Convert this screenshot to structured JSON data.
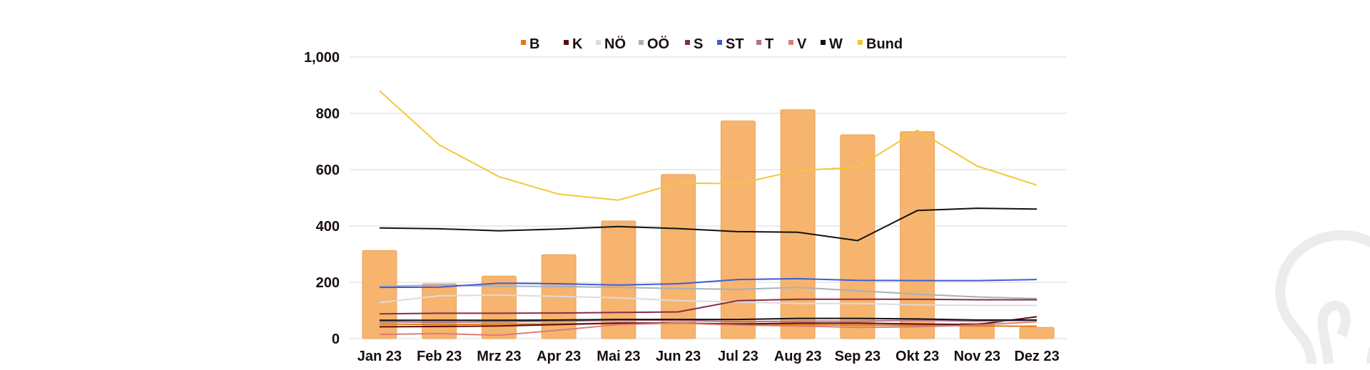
{
  "chart_data": {
    "type": "bar",
    "categories": [
      "Jan 23",
      "Feb 23",
      "Mrz 23",
      "Apr 23",
      "Mai 23",
      "Jun 23",
      "Jul 23",
      "Aug 23",
      "Sep 23",
      "Okt 23",
      "Nov 23",
      "Dez 23"
    ],
    "ylim": [
      0,
      1000
    ],
    "yticks": [
      "0",
      "200",
      "400",
      "600",
      "800",
      "1,000"
    ],
    "yticks_values": [
      0,
      200,
      400,
      600,
      800,
      1000
    ],
    "grid": true,
    "legend_position": "top",
    "bars": {
      "name": "",
      "color": "#f6b46e",
      "values": [
        313,
        195,
        222,
        298,
        418,
        583,
        773,
        813,
        724,
        735,
        55,
        40
      ]
    },
    "series": [
      {
        "name": "B",
        "color": "#e07b10",
        "values": [
          52,
          50,
          52,
          52,
          55,
          55,
          52,
          50,
          48,
          47,
          45,
          44
        ]
      },
      {
        "name": "K",
        "color": "#5a1010",
        "values": [
          42,
          43,
          45,
          50,
          55,
          55,
          52,
          55,
          55,
          52,
          50,
          78
        ]
      },
      {
        "name": "NÖ",
        "color": "#dcdcdc",
        "values": [
          128,
          152,
          155,
          150,
          145,
          135,
          130,
          125,
          125,
          120,
          118,
          118
        ]
      },
      {
        "name": "OÖ",
        "color": "#aab0bb",
        "values": [
          186,
          190,
          186,
          185,
          182,
          178,
          175,
          182,
          170,
          158,
          148,
          142
        ]
      },
      {
        "name": "S",
        "color": "#8b2a4a",
        "values": [
          88,
          90,
          90,
          91,
          93,
          95,
          135,
          140,
          140,
          140,
          138,
          138
        ]
      },
      {
        "name": "ST",
        "color": "#3f5bd8",
        "values": [
          182,
          183,
          197,
          195,
          190,
          195,
          210,
          213,
          207,
          206,
          206,
          210
        ]
      },
      {
        "name": "T",
        "color": "#b07090",
        "values": [
          60,
          58,
          60,
          62,
          65,
          65,
          60,
          62,
          62,
          65,
          62,
          65
        ]
      },
      {
        "name": "V",
        "color": "#e07a7a",
        "values": [
          15,
          18,
          12,
          30,
          50,
          55,
          48,
          45,
          40,
          42,
          48,
          60
        ]
      },
      {
        "name": "W",
        "color": "#111111",
        "values": [
          393,
          390,
          383,
          389,
          398,
          391,
          380,
          378,
          348,
          455,
          463,
          460
        ]
      },
      {
        "name": "W",
        "color": "#111111",
        "values": [
          65,
          65,
          65,
          66,
          68,
          68,
          68,
          72,
          72,
          70,
          66,
          66
        ]
      },
      {
        "name": "Bund",
        "color": "#f2c83a",
        "values": [
          880,
          688,
          575,
          513,
          492,
          553,
          550,
          597,
          608,
          740,
          613,
          545
        ]
      }
    ],
    "legend": [
      {
        "name": "B",
        "color": "#e07b10"
      },
      {
        "name": "K",
        "color": "#5a1010"
      },
      {
        "name": "NÖ",
        "color": "#dcdcdc"
      },
      {
        "name": "OÖ",
        "color": "#aab0bb"
      },
      {
        "name": "S",
        "color": "#8b2a4a"
      },
      {
        "name": "ST",
        "color": "#3f5bd8"
      },
      {
        "name": "T",
        "color": "#b07090"
      },
      {
        "name": "V",
        "color": "#e07a7a"
      },
      {
        "name": "W",
        "color": "#111111"
      },
      {
        "name": "Bund",
        "color": "#f2c83a"
      }
    ]
  },
  "watermark": {
    "icon": "lightbulb-icon"
  }
}
